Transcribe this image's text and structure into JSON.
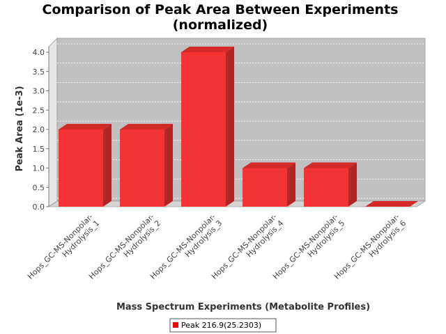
{
  "chart_data": {
    "type": "bar",
    "title": [
      "Comparison of Peak Area Between Experiments",
      "(normalized)"
    ],
    "xlabel": "Mass Spectrum Experiments (Metabolite Profiles)",
    "ylabel": "Peak Area (1e-3)",
    "ylim": [
      0,
      4.0
    ],
    "yticks": [
      "0.0",
      "0.5",
      "1.0",
      "1.5",
      "2.0",
      "2.5",
      "3.0",
      "3.5",
      "4.0"
    ],
    "grid": true,
    "legend_position": "bottom",
    "categories": [
      [
        "Hops_GC-MS-Nonpolar-",
        "Hydrolysis_1"
      ],
      [
        "Hops_GC-MS-Nonpolar-",
        "Hydrolysis_2"
      ],
      [
        "Hops_GC-MS-Nonpolar-",
        "Hydrolysis_3"
      ],
      [
        "Hops_GC-MS-Nonpolar-",
        "Hydrolysis_4"
      ],
      [
        "Hops_GC-MS-Nonpolar-",
        "Hydrolysis_5"
      ],
      [
        "Hops_GC-MS-Nonpolar-",
        "Hydrolysis_6"
      ]
    ],
    "series": [
      {
        "name": "Peak 216.9(25.2303)",
        "color": "#ff0000",
        "values": [
          2.0,
          2.0,
          4.0,
          1.0,
          1.0,
          0.0
        ]
      }
    ]
  }
}
